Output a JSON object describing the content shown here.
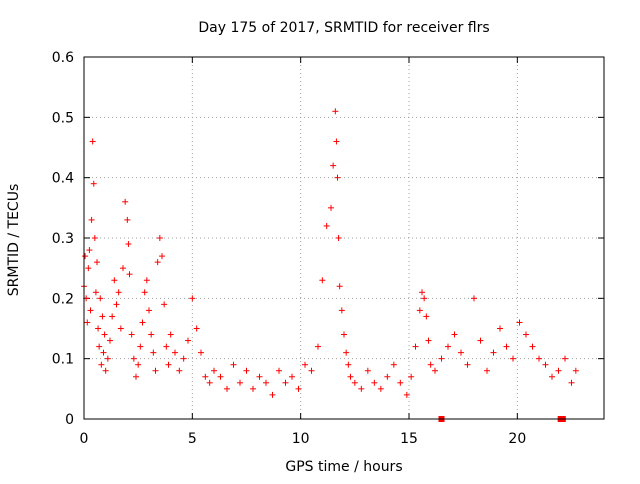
{
  "chart_data": {
    "type": "scatter",
    "title": "Day 175 of 2017, SRMTID for receiver flrs",
    "xlabel": "GPS time / hours",
    "ylabel": "SRMTID / TECUs",
    "xlim": [
      0,
      24
    ],
    "ylim": [
      0,
      0.6
    ],
    "xticks": [
      0,
      5,
      10,
      15,
      20
    ],
    "xtick_labels": [
      "0",
      "5",
      "10",
      "15",
      "20"
    ],
    "yticks": [
      0,
      0.1,
      0.2,
      0.3,
      0.4,
      0.5,
      0.6
    ],
    "ytick_labels": [
      "0",
      "0.1",
      "0.2",
      "0.3",
      "0.4",
      "0.5",
      "0.6"
    ],
    "grid": true,
    "marker": "+",
    "series": [
      {
        "name": "SRMTID",
        "color": "#ff0000",
        "x": [
          0.0,
          0.05,
          0.1,
          0.15,
          0.2,
          0.25,
          0.3,
          0.35,
          0.4,
          0.45,
          0.5,
          0.55,
          0.6,
          0.65,
          0.7,
          0.75,
          0.8,
          0.85,
          0.9,
          0.95,
          1.0,
          1.1,
          1.2,
          1.3,
          1.4,
          1.5,
          1.6,
          1.7,
          1.8,
          1.9,
          2.0,
          2.05,
          2.1,
          2.2,
          2.3,
          2.4,
          2.5,
          2.6,
          2.7,
          2.8,
          2.9,
          3.0,
          3.1,
          3.2,
          3.3,
          3.4,
          3.5,
          3.6,
          3.7,
          3.8,
          3.9,
          4.0,
          4.2,
          4.4,
          4.6,
          4.8,
          5.0,
          5.2,
          5.4,
          5.6,
          5.8,
          6.0,
          6.3,
          6.6,
          6.9,
          7.2,
          7.5,
          7.8,
          8.1,
          8.4,
          8.7,
          9.0,
          9.3,
          9.6,
          9.9,
          10.2,
          10.5,
          10.8,
          11.0,
          11.2,
          11.4,
          11.5,
          11.6,
          11.65,
          11.7,
          11.75,
          11.8,
          11.9,
          12.0,
          12.1,
          12.2,
          12.3,
          12.5,
          12.8,
          13.1,
          13.4,
          13.7,
          14.0,
          14.3,
          14.6,
          14.9,
          15.1,
          15.3,
          15.5,
          15.6,
          15.7,
          15.8,
          15.9,
          16.0,
          16.2,
          16.5,
          16.8,
          17.1,
          17.4,
          17.7,
          18.0,
          18.3,
          18.6,
          18.9,
          19.2,
          19.5,
          19.8,
          20.1,
          20.4,
          20.7,
          21.0,
          21.3,
          21.6,
          21.9,
          22.2,
          22.5,
          22.7
        ],
        "y": [
          0.22,
          0.27,
          0.2,
          0.16,
          0.25,
          0.28,
          0.18,
          0.33,
          0.46,
          0.39,
          0.3,
          0.21,
          0.26,
          0.15,
          0.12,
          0.2,
          0.09,
          0.17,
          0.11,
          0.14,
          0.08,
          0.1,
          0.13,
          0.17,
          0.23,
          0.19,
          0.21,
          0.15,
          0.25,
          0.36,
          0.33,
          0.29,
          0.24,
          0.14,
          0.1,
          0.07,
          0.09,
          0.12,
          0.16,
          0.21,
          0.23,
          0.18,
          0.14,
          0.11,
          0.08,
          0.26,
          0.3,
          0.27,
          0.19,
          0.12,
          0.09,
          0.14,
          0.11,
          0.08,
          0.1,
          0.13,
          0.2,
          0.15,
          0.11,
          0.07,
          0.06,
          0.08,
          0.07,
          0.05,
          0.09,
          0.06,
          0.08,
          0.05,
          0.07,
          0.06,
          0.04,
          0.08,
          0.06,
          0.07,
          0.05,
          0.09,
          0.08,
          0.12,
          0.23,
          0.32,
          0.35,
          0.42,
          0.51,
          0.46,
          0.4,
          0.3,
          0.22,
          0.18,
          0.14,
          0.11,
          0.09,
          0.07,
          0.06,
          0.05,
          0.08,
          0.06,
          0.05,
          0.07,
          0.09,
          0.06,
          0.04,
          0.07,
          0.12,
          0.18,
          0.21,
          0.2,
          0.17,
          0.13,
          0.09,
          0.08,
          0.1,
          0.12,
          0.14,
          0.11,
          0.09,
          0.2,
          0.13,
          0.08,
          0.11,
          0.15,
          0.12,
          0.1,
          0.16,
          0.14,
          0.12,
          0.1,
          0.09,
          0.07,
          0.08,
          0.1,
          0.06,
          0.08
        ]
      }
    ],
    "missing_markers_x": [
      16.5,
      22.0,
      22.1
    ]
  }
}
